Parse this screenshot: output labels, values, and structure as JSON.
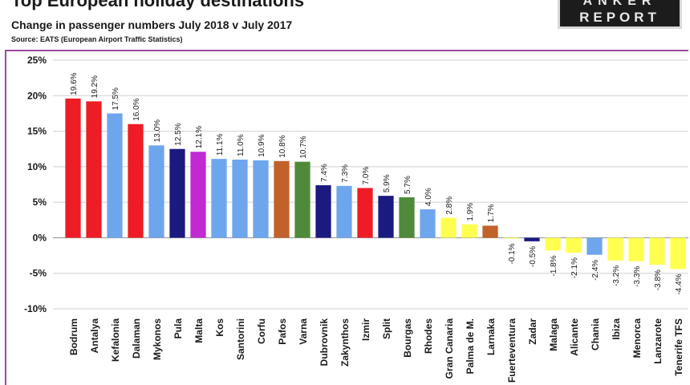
{
  "header": {
    "title": "Top European holiday destinations",
    "subtitle": "Change in passenger numbers July 2018 v July 2017",
    "source": "Source: EATS (European Airport Traffic Statistics)",
    "logo_top": "ANKER",
    "logo_bottom": "REPORT"
  },
  "chart_data": {
    "type": "bar",
    "title": "Top European holiday destinations",
    "subtitle": "Change in passenger numbers July 2018 v July 2017",
    "ylim": [
      -10,
      25
    ],
    "yticks": [
      25,
      20,
      15,
      10,
      5,
      0,
      -5,
      -10
    ],
    "ytick_labels": [
      "25%",
      "20%",
      "15%",
      "10%",
      "5%",
      "0%",
      "-5%",
      "-10%"
    ],
    "grid": true,
    "categories": [
      "Bodrum",
      "Antalya",
      "Kefalonia",
      "Dalaman",
      "Mykonos",
      "Pula",
      "Malta",
      "Kos",
      "Santorini",
      "Corfu",
      "Pafos",
      "Varna",
      "Dubrovnik",
      "Zakynthos",
      "Izmir",
      "Split",
      "Bourgas",
      "Rhodes",
      "Gran Canaria",
      "Palma de M.",
      "Larnaka",
      "Fuerteventura",
      "Zadar",
      "Malaga",
      "Alicante",
      "Chania",
      "Ibiza",
      "Menorca",
      "Lanzarote",
      "Tenerife TFS"
    ],
    "values": [
      19.6,
      19.2,
      17.5,
      16.0,
      13.0,
      12.5,
      12.1,
      11.1,
      11.0,
      10.9,
      10.8,
      10.7,
      7.4,
      7.3,
      7.0,
      5.9,
      5.7,
      4.0,
      2.8,
      1.9,
      1.7,
      -0.1,
      -0.5,
      -1.8,
      -2.1,
      -2.4,
      -3.2,
      -3.3,
      -3.8,
      -4.4
    ],
    "value_labels": [
      "19.6%",
      "19.2%",
      "17.5%",
      "16.0%",
      "13.0%",
      "12.5%",
      "12.1%",
      "11.1%",
      "11.0%",
      "10.9%",
      "10.8%",
      "10.7%",
      "7.4%",
      "7.3%",
      "7.0%",
      "5.9%",
      "5.7%",
      "4.0%",
      "2.8%",
      "1.9%",
      "1.7%",
      "-0.1%",
      "-0.5%",
      "-1.8%",
      "-2.1%",
      "-2.4%",
      "-3.2%",
      "-3.3%",
      "-3.8%",
      "-4.4%"
    ],
    "colors": [
      "#ee1c24",
      "#ee1c24",
      "#6ea6ee",
      "#ee1c24",
      "#6ea6ee",
      "#1a1a80",
      "#c02ad0",
      "#6ea6ee",
      "#6ea6ee",
      "#6ea6ee",
      "#c0622a",
      "#4f8a3a",
      "#1a1a80",
      "#6ea6ee",
      "#ee1c24",
      "#1a1a80",
      "#4f8a3a",
      "#6ea6ee",
      "#ffff50",
      "#ffff50",
      "#c0622a",
      "#ffff50",
      "#1a1a80",
      "#ffff50",
      "#ffff50",
      "#6ea6ee",
      "#ffff50",
      "#ffff50",
      "#ffff50",
      "#ffff50"
    ]
  }
}
